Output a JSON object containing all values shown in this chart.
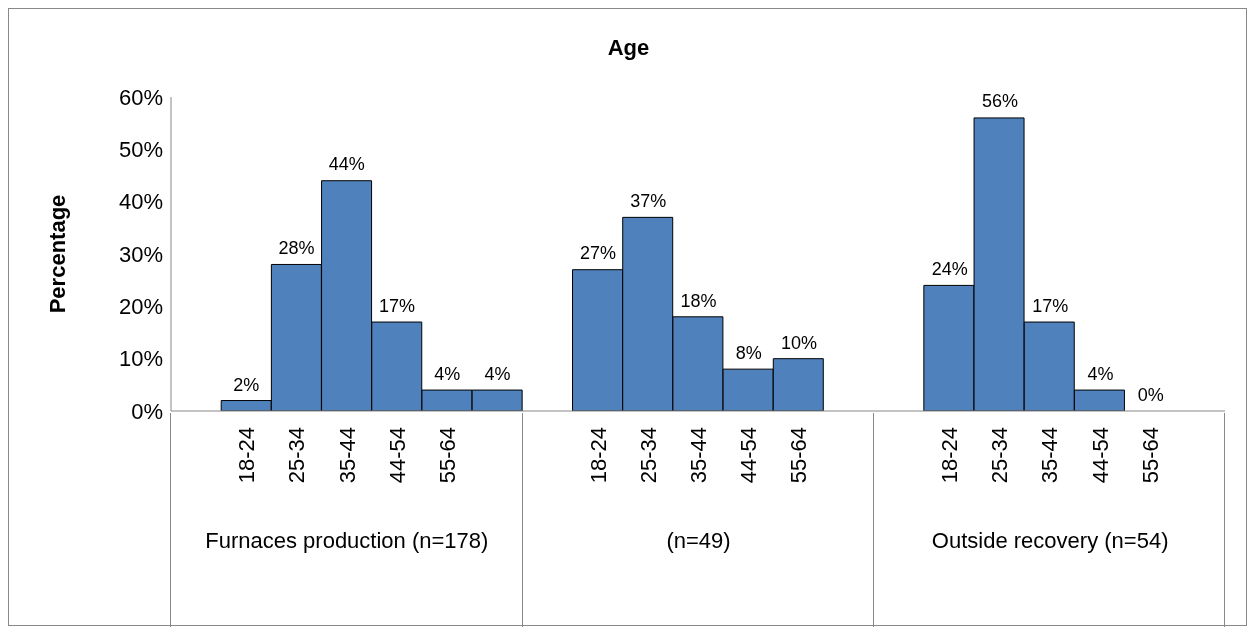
{
  "chart_data": {
    "type": "bar",
    "title": "Age",
    "ylabel": "Percentage",
    "categories": [
      null,
      "18-24",
      "25-34",
      "35-44",
      "44-54",
      "55-64",
      null,
      null,
      "18-24",
      "25-34",
      "35-44",
      "44-54",
      "55-64",
      null,
      null,
      "18-24",
      "25-34",
      "35-44",
      "44-54",
      "55-64",
      null
    ],
    "values": [
      null,
      2,
      28,
      44,
      17,
      4,
      4,
      null,
      27,
      37,
      18,
      8,
      10,
      null,
      null,
      24,
      56,
      17,
      4,
      0,
      null
    ],
    "value_labels": [
      null,
      "2%",
      "28%",
      "44%",
      "17%",
      "4%",
      "4%",
      null,
      "27%",
      "37%",
      "18%",
      "8%",
      "10%",
      null,
      null,
      "24%",
      "56%",
      "17%",
      "4%",
      "0%",
      null
    ],
    "color": "#4f81bd",
    "ylim": [
      0,
      60
    ],
    "yticks": [
      {
        "value": 0,
        "label": "0%"
      },
      {
        "value": 10,
        "label": "10%"
      },
      {
        "value": 20,
        "label": "20%"
      },
      {
        "value": 30,
        "label": "30%"
      },
      {
        "value": 40,
        "label": "40%"
      },
      {
        "value": 50,
        "label": "50%"
      },
      {
        "value": 60,
        "label": "60%"
      }
    ],
    "annotations": [
      "Furnaces production (n=178)",
      "(n=49)",
      "Outside recovery (n=54)"
    ],
    "grid": false,
    "legend": false
  }
}
